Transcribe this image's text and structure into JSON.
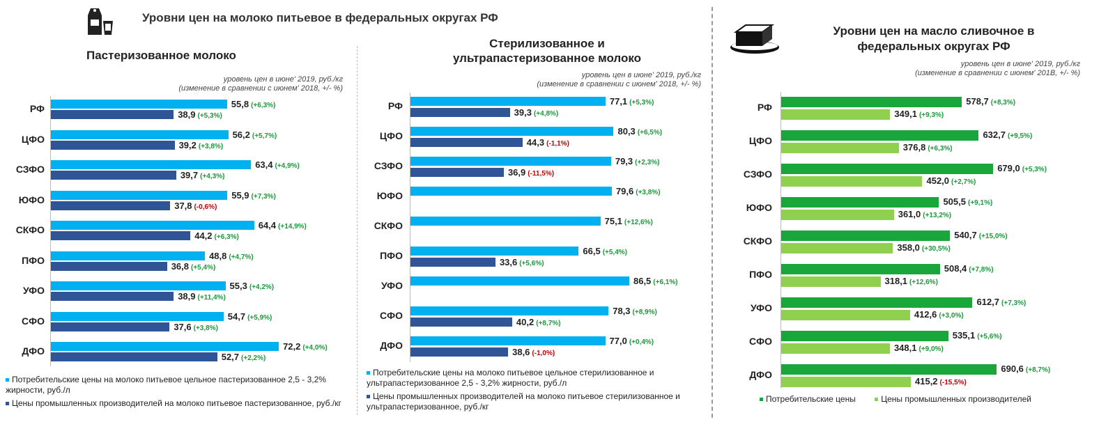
{
  "colors": {
    "consumer_blue": "#00b0f0",
    "producer_navy": "#2f5597",
    "consumer_green": "#19a63a",
    "producer_lightgreen": "#8fd14f",
    "positive": "#1a9a3a",
    "negative": "#c00000"
  },
  "icons": {
    "milk": "milk-carton-glass-icon",
    "butter": "butter-block-icon"
  },
  "milk_title": "Уровни цен на молоко питьевое в федеральных округах РФ",
  "butter_title": "Уровни цен на масло сливочное в федеральных округах РФ",
  "chart_data": [
    {
      "type": "bar",
      "orientation": "horizontal",
      "title": "Пастеризованное молоко",
      "note_line1": "уровень цен в июне' 2019, руб./кг",
      "note_line2": "(изменение в сравнении с июнем' 2018, +/- %)",
      "categories": [
        "РФ",
        "ЦФО",
        "СЗФО",
        "ЮФО",
        "СКФО",
        "ПФО",
        "УФО",
        "СФО",
        "ДФО"
      ],
      "series": [
        {
          "name": "Потребительские цены на молоко питьевое цельное пастеризованное 2,5 - 3,2% жирности, руб./л",
          "color": "#00b0f0",
          "values": [
            55.8,
            56.2,
            63.4,
            55.9,
            64.4,
            48.8,
            55.3,
            54.7,
            72.2
          ],
          "labels": [
            "55,8",
            "56,2",
            "63,4",
            "55,9",
            "64,4",
            "48,8",
            "55,3",
            "54,7",
            "72,2"
          ],
          "changes": [
            "(+6,3%)",
            "(+5,7%)",
            "(+4,9%)",
            "(+7,3%)",
            "(+14,9%)",
            "(+4,7%)",
            "(+4,2%)",
            "(+5,9%)",
            "(+4,0%)"
          ]
        },
        {
          "name": "Цены промышленных производителей на молоко питьевое пастеризованное, руб./кг",
          "color": "#2f5597",
          "values": [
            38.9,
            39.2,
            39.7,
            37.8,
            44.2,
            36.8,
            38.9,
            37.6,
            52.7
          ],
          "labels": [
            "38,9",
            "39,2",
            "39,7",
            "37,8",
            "44,2",
            "36,8",
            "38,9",
            "37,6",
            "52,7"
          ],
          "changes": [
            "(+5,3%)",
            "(+3,8%)",
            "(+4,3%)",
            "(-0,6%)",
            "(+6,3%)",
            "(+5,4%)",
            "(+11,4%)",
            "(+3,8%)",
            "(+2,2%)"
          ]
        }
      ]
    },
    {
      "type": "bar",
      "orientation": "horizontal",
      "title": "Стерилизованное и ультрапастеризованное молоко",
      "note_line1": "уровень цен в июне' 2019, руб./кг",
      "note_line2": "(изменение в сравнении с июнем' 2018, +/- %)",
      "categories": [
        "РФ",
        "ЦФО",
        "СЗФО",
        "ЮФО",
        "СКФО",
        "ПФО",
        "УФО",
        "СФО",
        "ДФО"
      ],
      "series": [
        {
          "name": "Потребительские цены на молоко питьевое цельное стерилизованное и ультрапастеризованное 2,5 - 3,2% жирности, руб./л",
          "color": "#00b0f0",
          "values": [
            77.1,
            80.3,
            79.3,
            79.6,
            75.1,
            66.5,
            86.5,
            78.3,
            77.0
          ],
          "labels": [
            "77,1",
            "80,3",
            "79,3",
            "79,6",
            "75,1",
            "66,5",
            "86,5",
            "78,3",
            "77,0"
          ],
          "changes": [
            "(+5,3%)",
            "(+6,5%)",
            "(+2,3%)",
            "(+3,8%)",
            "(+12,6%)",
            "(+5,4%)",
            "(+6,1%)",
            "(+8,9%)",
            "(+0,4%)"
          ]
        },
        {
          "name": "Цены промышленных производителей на молоко питьевое стерилизованное и ультрапастеризованное, руб./кг",
          "color": "#2f5597",
          "values": [
            39.3,
            44.3,
            36.9,
            null,
            null,
            33.6,
            null,
            40.2,
            38.6
          ],
          "labels": [
            "39,3",
            "44,3",
            "36,9",
            "",
            "",
            "33,6",
            "",
            "40,2",
            "38,6"
          ],
          "changes": [
            "(+4,8%)",
            "(-1,1%)",
            "(-11,5%)",
            "",
            "",
            "(+5,6%)",
            "",
            "(+8,7%)",
            "(-1,0%)"
          ]
        }
      ]
    },
    {
      "type": "bar",
      "orientation": "horizontal",
      "title": "Уровни цен на масло сливочное в федеральных округах РФ",
      "note_line1": "уровень цен в июне' 2019, руб./кг",
      "note_line2": "(изменение в сравнении с июнем' 201В, +/- %)",
      "categories": [
        "РФ",
        "ЦФО",
        "СЗФО",
        "ЮФО",
        "СКФО",
        "ПФО",
        "УФО",
        "СФО",
        "ДФО"
      ],
      "series": [
        {
          "name": "Потребительские цены",
          "color": "#19a63a",
          "values": [
            578.7,
            632.7,
            679.0,
            505.5,
            540.7,
            508.4,
            612.7,
            535.1,
            690.6
          ],
          "labels": [
            "578,7",
            "632,7",
            "679,0",
            "505,5",
            "540,7",
            "508,4",
            "612,7",
            "535,1",
            "690,6"
          ],
          "changes": [
            "(+8,3%)",
            "(+9,5%)",
            "(+5,3%)",
            "(+9,1%)",
            "(+15,0%)",
            "(+7,8%)",
            "(+7,3%)",
            "(+5,6%)",
            "(+8,7%)"
          ]
        },
        {
          "name": "Цены промышленных производителей",
          "color": "#8fd14f",
          "values": [
            349.1,
            376.8,
            452.0,
            361.0,
            358.0,
            318.1,
            412.6,
            348.1,
            415.2
          ],
          "labels": [
            "349,1",
            "376,8",
            "452,0",
            "361,0",
            "358,0",
            "318,1",
            "412,6",
            "348,1",
            "415,2"
          ],
          "changes": [
            "(+9,3%)",
            "(+6,3%)",
            "(+2,7%)",
            "(+13,2%)",
            "(+30,5%)",
            "(+12,6%)",
            "(+3,0%)",
            "(+9,0%)",
            "(-15,5%)"
          ]
        }
      ]
    }
  ]
}
